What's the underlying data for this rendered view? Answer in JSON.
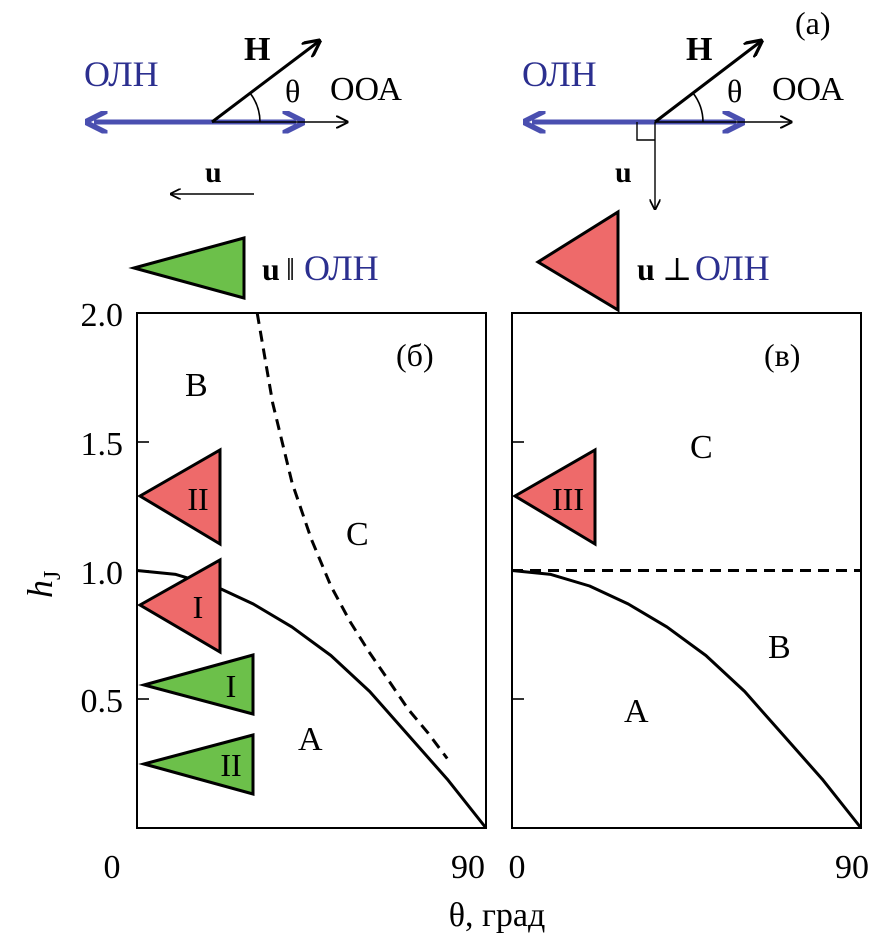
{
  "panel_a": {
    "label": "(a)",
    "left": {
      "easy_axis": "ОЛН",
      "field": "H",
      "angle": "θ",
      "hard_axis": "ООА",
      "u": "u"
    },
    "right": {
      "easy_axis": "ОЛН",
      "field": "H",
      "angle": "θ",
      "hard_axis": "ООА",
      "u": "u"
    }
  },
  "legend": {
    "parallel": {
      "u": "u",
      "symbol": "‖",
      "axis": "ОЛН"
    },
    "perp": {
      "u": "u",
      "symbol": "⊥",
      "axis": "ОЛН"
    }
  },
  "colors": {
    "blue_text": "#2b2f8f",
    "blue_arrow": "#4a4fb0",
    "green": "#6cc04a",
    "red": "#ee6a6a"
  },
  "axes": {
    "ylabel": "h",
    "ylabel_sub": "J",
    "xlabel": "θ, град",
    "yticks": [
      "0.5",
      "1.0",
      "1.5",
      "2.0"
    ],
    "xticks_b": [
      "0",
      "90"
    ],
    "xticks_c": [
      "0",
      "90"
    ]
  },
  "panel_b": {
    "label": "(б)",
    "regions": {
      "B": "B",
      "C": "C",
      "A": "A"
    },
    "markers": [
      {
        "label": "II",
        "color": "red",
        "y": 1.29
      },
      {
        "label": "I",
        "color": "red",
        "y": 0.86
      },
      {
        "label": "I",
        "color": "green",
        "y": 0.56
      },
      {
        "label": "II",
        "color": "green",
        "y": 0.25
      }
    ]
  },
  "panel_c": {
    "label": "(в)",
    "regions": {
      "C": "C",
      "B": "B",
      "A": "A"
    },
    "markers": [
      {
        "label": "III",
        "color": "red",
        "y": 1.29
      }
    ]
  },
  "chart_data": [
    {
      "type": "line",
      "xlabel": "θ, град",
      "ylabel": "hJ",
      "xlim": [
        0,
        90
      ],
      "ylim": [
        0,
        2.0
      ],
      "series": [
        {
          "style": "solid",
          "x": [
            0,
            10,
            20,
            30,
            40,
            50,
            60,
            70,
            80,
            90
          ],
          "y": [
            1.0,
            0.985,
            0.94,
            0.87,
            0.78,
            0.67,
            0.53,
            0.36,
            0.19,
            0.0
          ]
        },
        {
          "style": "dashed",
          "x": [
            31,
            35,
            40,
            45,
            50,
            55,
            60,
            65,
            70,
            75,
            80
          ],
          "y": [
            2.0,
            1.65,
            1.34,
            1.12,
            0.94,
            0.8,
            0.68,
            0.57,
            0.46,
            0.37,
            0.27
          ]
        }
      ]
    },
    {
      "type": "line",
      "xlabel": "θ, град",
      "ylabel": "hJ",
      "xlim": [
        0,
        90
      ],
      "ylim": [
        0,
        2.0
      ],
      "series": [
        {
          "style": "solid",
          "x": [
            0,
            10,
            20,
            30,
            40,
            50,
            60,
            70,
            80,
            90
          ],
          "y": [
            1.0,
            0.985,
            0.94,
            0.87,
            0.78,
            0.67,
            0.53,
            0.36,
            0.19,
            0.0
          ]
        },
        {
          "style": "dashed",
          "x": [
            0,
            90
          ],
          "y": [
            1.0,
            1.0
          ]
        }
      ]
    }
  ]
}
